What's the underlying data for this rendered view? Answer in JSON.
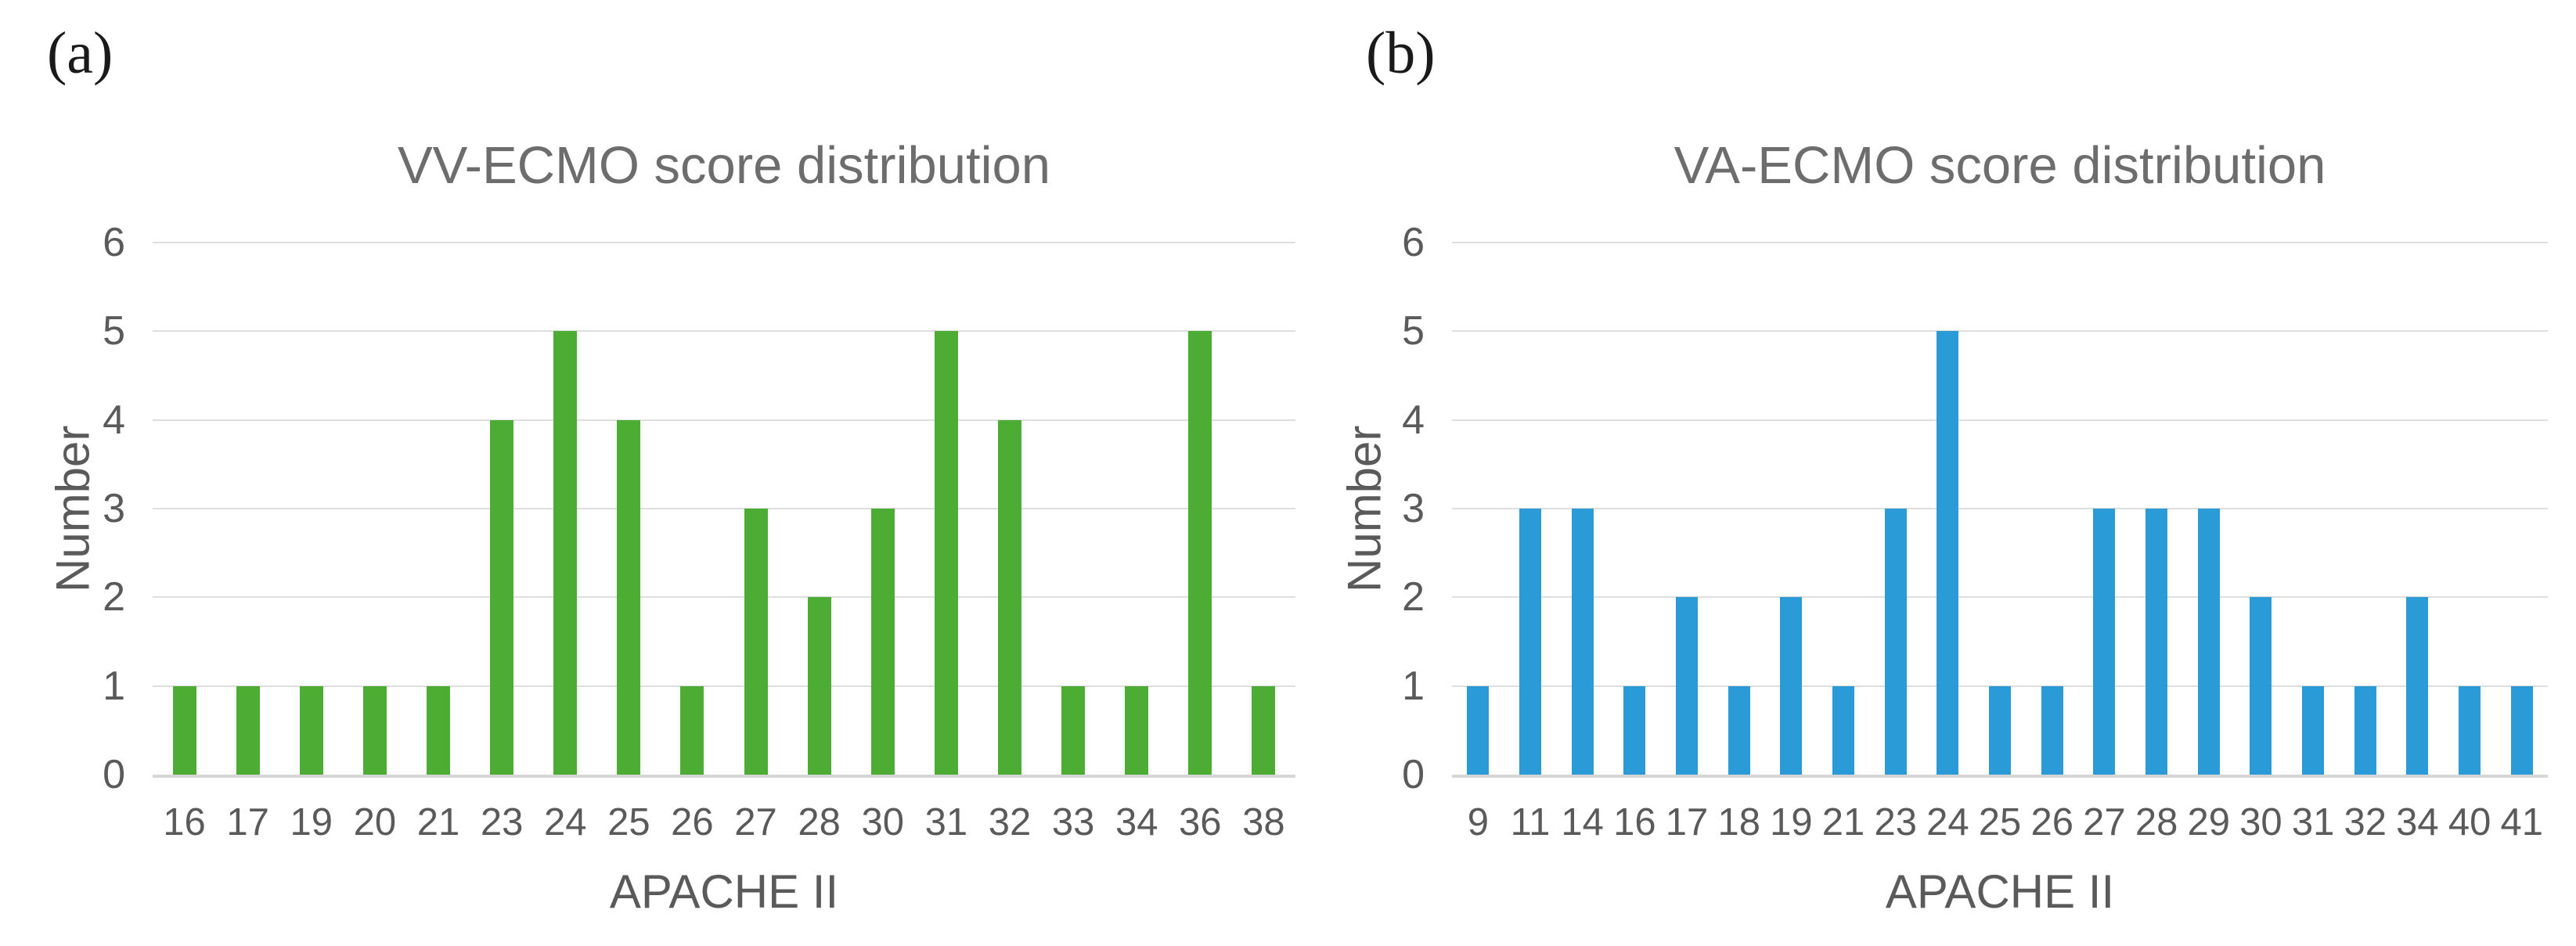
{
  "figure": {
    "panel_a_label": "(a)",
    "panel_b_label": "(b)"
  },
  "colors": {
    "green_bar": "#4CAC33",
    "blue_bar": "#2B9BD7",
    "gridline": "#DEDEDE",
    "axis_baseline": "#D6D6D6",
    "axis_text": "#5A5A5A",
    "title_text": "#6D6D6D"
  },
  "chart_data": [
    {
      "type": "bar",
      "panel": "a",
      "title": "VV-ECMO score distribution",
      "xlabel": "APACHE II",
      "ylabel": "Number",
      "categories": [
        "16",
        "17",
        "19",
        "20",
        "21",
        "23",
        "24",
        "25",
        "26",
        "27",
        "28",
        "30",
        "31",
        "32",
        "33",
        "34",
        "36",
        "38"
      ],
      "values": [
        1,
        1,
        1,
        1,
        1,
        4,
        5,
        4,
        1,
        3,
        2,
        3,
        5,
        4,
        1,
        1,
        5,
        1
      ],
      "ylim": [
        0,
        6
      ],
      "yticks": [
        0,
        1,
        2,
        3,
        4,
        5,
        6
      ],
      "grid": "horizontal",
      "legend": "none",
      "color": "#4CAC33"
    },
    {
      "type": "bar",
      "panel": "b",
      "title": "VA-ECMO score distribution",
      "xlabel": "APACHE II",
      "ylabel": "Number",
      "categories": [
        "9",
        "11",
        "14",
        "16",
        "17",
        "18",
        "19",
        "21",
        "23",
        "24",
        "25",
        "26",
        "27",
        "28",
        "29",
        "30",
        "31",
        "32",
        "34",
        "40",
        "41"
      ],
      "values": [
        1,
        3,
        3,
        1,
        2,
        1,
        2,
        1,
        3,
        5,
        1,
        1,
        3,
        3,
        3,
        2,
        1,
        1,
        2,
        1,
        1
      ],
      "ylim": [
        0,
        6
      ],
      "yticks": [
        0,
        1,
        2,
        3,
        4,
        5,
        6
      ],
      "grid": "horizontal",
      "legend": "none",
      "color": "#2B9BD7"
    }
  ]
}
